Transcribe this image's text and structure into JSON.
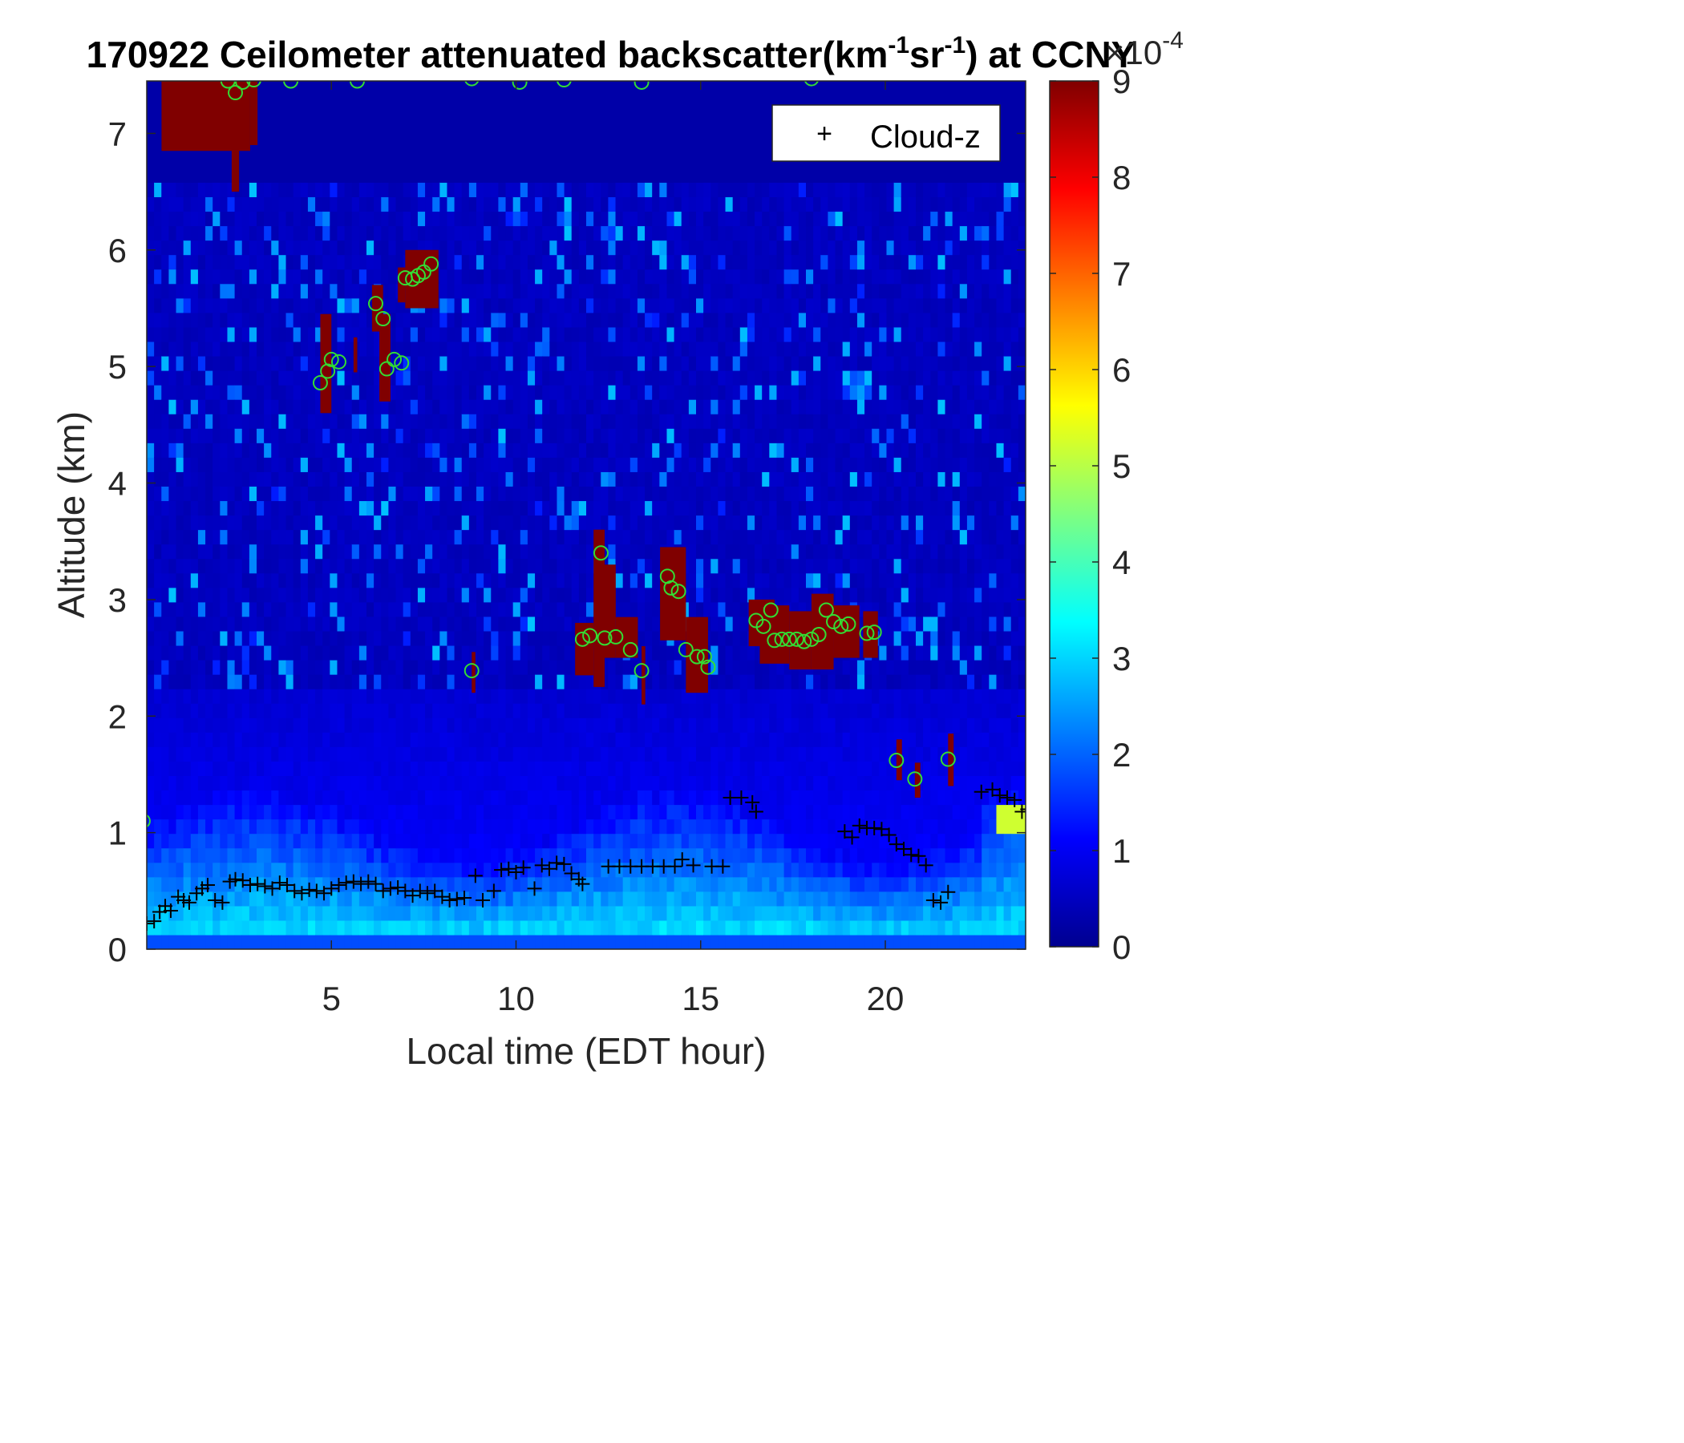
{
  "chart_data": {
    "type": "heatmap",
    "title_prefix": "170922 Ceilometer attenuated backscatter(km",
    "title_sup1": "-1",
    "title_mid": "sr",
    "title_sup2": "-1",
    "title_suffix": ") at CCNY",
    "xlabel": "Local time (EDT hour)",
    "ylabel": "Altitude (km)",
    "xlim": [
      0,
      23.8
    ],
    "ylim": [
      0,
      7.45
    ],
    "xticks": [
      "5",
      "10",
      "15",
      "20"
    ],
    "yticks": [
      "0",
      "1",
      "2",
      "3",
      "4",
      "5",
      "6",
      "7"
    ],
    "colorbar": {
      "min": 0,
      "max": 9,
      "ticks": [
        "0",
        "1",
        "2",
        "3",
        "4",
        "5",
        "6",
        "7",
        "8",
        "9"
      ],
      "exponent_base": "×10",
      "exponent": "-4",
      "colormap": "jet"
    },
    "legend": {
      "entries": [
        "Cloud-z"
      ],
      "placement": "top-right"
    },
    "background_level": 0.3,
    "surface_layer_level": 3.0,
    "colors": {
      "cloud_z_marker": "#000000",
      "cloud_circle": "#33dd33",
      "saturated_cloud": "#800000"
    },
    "cloud_z": [
      [
        0.0,
        0.22
      ],
      [
        0.2,
        0.24
      ],
      [
        0.35,
        0.32
      ],
      [
        0.5,
        0.37
      ],
      [
        0.65,
        0.33
      ],
      [
        0.85,
        0.45
      ],
      [
        1.0,
        0.42
      ],
      [
        1.15,
        0.4
      ],
      [
        1.35,
        0.48
      ],
      [
        1.5,
        0.52
      ],
      [
        1.65,
        0.55
      ],
      [
        1.85,
        0.42
      ],
      [
        2.05,
        0.4
      ],
      [
        2.25,
        0.58
      ],
      [
        2.4,
        0.6
      ],
      [
        2.6,
        0.59
      ],
      [
        2.8,
        0.55
      ],
      [
        3.0,
        0.56
      ],
      [
        3.2,
        0.54
      ],
      [
        3.4,
        0.52
      ],
      [
        3.6,
        0.57
      ],
      [
        3.8,
        0.55
      ],
      [
        4.0,
        0.5
      ],
      [
        4.2,
        0.48
      ],
      [
        4.4,
        0.51
      ],
      [
        4.6,
        0.5
      ],
      [
        4.8,
        0.48
      ],
      [
        5.0,
        0.52
      ],
      [
        5.2,
        0.55
      ],
      [
        5.4,
        0.57
      ],
      [
        5.6,
        0.58
      ],
      [
        5.8,
        0.56
      ],
      [
        6.0,
        0.58
      ],
      [
        6.2,
        0.56
      ],
      [
        6.4,
        0.5
      ],
      [
        6.6,
        0.52
      ],
      [
        6.8,
        0.53
      ],
      [
        7.0,
        0.5
      ],
      [
        7.2,
        0.46
      ],
      [
        7.4,
        0.5
      ],
      [
        7.6,
        0.48
      ],
      [
        7.8,
        0.5
      ],
      [
        8.0,
        0.45
      ],
      [
        8.2,
        0.42
      ],
      [
        8.4,
        0.43
      ],
      [
        8.6,
        0.44
      ],
      [
        8.9,
        0.63
      ],
      [
        9.1,
        0.42
      ],
      [
        9.4,
        0.5
      ],
      [
        9.6,
        0.68
      ],
      [
        9.8,
        0.69
      ],
      [
        10.0,
        0.66
      ],
      [
        10.2,
        0.7
      ],
      [
        10.5,
        0.52
      ],
      [
        10.7,
        0.72
      ],
      [
        10.9,
        0.69
      ],
      [
        11.1,
        0.74
      ],
      [
        11.3,
        0.73
      ],
      [
        11.5,
        0.65
      ],
      [
        11.7,
        0.6
      ],
      [
        11.8,
        0.56
      ],
      [
        12.5,
        0.71
      ],
      [
        12.8,
        0.71
      ],
      [
        13.1,
        0.71
      ],
      [
        13.4,
        0.71
      ],
      [
        13.7,
        0.71
      ],
      [
        14.0,
        0.71
      ],
      [
        14.3,
        0.71
      ],
      [
        14.5,
        0.77
      ],
      [
        14.8,
        0.72
      ],
      [
        15.3,
        0.71
      ],
      [
        15.6,
        0.71
      ],
      [
        15.8,
        1.3
      ],
      [
        16.1,
        1.3
      ],
      [
        16.4,
        1.26
      ],
      [
        16.5,
        1.18
      ],
      [
        18.9,
        1.01
      ],
      [
        19.1,
        0.96
      ],
      [
        19.3,
        1.06
      ],
      [
        19.5,
        1.04
      ],
      [
        19.7,
        1.04
      ],
      [
        19.9,
        1.03
      ],
      [
        20.1,
        0.98
      ],
      [
        20.3,
        0.9
      ],
      [
        20.5,
        0.86
      ],
      [
        20.7,
        0.81
      ],
      [
        20.9,
        0.8
      ],
      [
        21.1,
        0.72
      ],
      [
        21.3,
        0.42
      ],
      [
        21.5,
        0.4
      ],
      [
        21.7,
        0.49
      ],
      [
        22.6,
        1.35
      ],
      [
        22.9,
        1.37
      ],
      [
        23.1,
        1.32
      ],
      [
        23.3,
        1.3
      ],
      [
        23.5,
        1.28
      ],
      [
        23.7,
        1.18
      ],
      [
        23.85,
        1.2
      ]
    ],
    "cloud_circles": [
      [
        -0.1,
        1.1
      ],
      [
        2.2,
        7.45
      ],
      [
        2.4,
        7.35
      ],
      [
        2.6,
        7.44
      ],
      [
        2.9,
        7.46
      ],
      [
        3.9,
        7.45
      ],
      [
        5.7,
        7.45
      ],
      [
        8.8,
        7.47
      ],
      [
        10.1,
        7.44
      ],
      [
        11.3,
        7.46
      ],
      [
        13.4,
        7.44
      ],
      [
        18.0,
        7.47
      ],
      [
        4.7,
        4.86
      ],
      [
        4.9,
        4.96
      ],
      [
        5.0,
        5.06
      ],
      [
        5.2,
        5.04
      ],
      [
        6.2,
        5.54
      ],
      [
        6.4,
        5.41
      ],
      [
        6.5,
        4.98
      ],
      [
        6.7,
        5.06
      ],
      [
        6.9,
        5.03
      ],
      [
        7.0,
        5.76
      ],
      [
        7.2,
        5.75
      ],
      [
        7.35,
        5.78
      ],
      [
        7.5,
        5.81
      ],
      [
        7.7,
        5.88
      ],
      [
        8.8,
        2.39
      ],
      [
        11.8,
        2.66
      ],
      [
        12.0,
        2.69
      ],
      [
        12.3,
        3.4
      ],
      [
        12.4,
        2.67
      ],
      [
        12.7,
        2.68
      ],
      [
        13.1,
        2.57
      ],
      [
        13.4,
        2.39
      ],
      [
        14.1,
        3.2
      ],
      [
        14.2,
        3.1
      ],
      [
        14.4,
        3.07
      ],
      [
        14.6,
        2.57
      ],
      [
        14.9,
        2.51
      ],
      [
        15.1,
        2.51
      ],
      [
        15.2,
        2.42
      ],
      [
        16.5,
        2.82
      ],
      [
        16.7,
        2.77
      ],
      [
        16.9,
        2.91
      ],
      [
        17.0,
        2.65
      ],
      [
        17.2,
        2.66
      ],
      [
        17.4,
        2.66
      ],
      [
        17.6,
        2.66
      ],
      [
        17.8,
        2.64
      ],
      [
        18.0,
        2.66
      ],
      [
        18.2,
        2.7
      ],
      [
        18.4,
        2.91
      ],
      [
        18.6,
        2.81
      ],
      [
        18.8,
        2.77
      ],
      [
        19.0,
        2.79
      ],
      [
        19.5,
        2.71
      ],
      [
        19.7,
        2.72
      ],
      [
        20.3,
        1.62
      ],
      [
        20.8,
        1.46
      ],
      [
        21.7,
        1.63
      ]
    ],
    "saturated_regions": [
      [
        0.4,
        2.8,
        6.85,
        7.45
      ],
      [
        2.3,
        2.5,
        6.5,
        7.45
      ],
      [
        2.8,
        3.0,
        6.9,
        7.45
      ],
      [
        4.7,
        5.0,
        4.6,
        5.45
      ],
      [
        5.6,
        5.7,
        4.95,
        5.25
      ],
      [
        6.1,
        6.4,
        5.3,
        5.7
      ],
      [
        6.3,
        6.6,
        4.7,
        5.45
      ],
      [
        6.8,
        7.0,
        5.55,
        5.85
      ],
      [
        7.0,
        7.9,
        5.5,
        6.0
      ],
      [
        8.8,
        8.9,
        2.2,
        2.55
      ],
      [
        11.6,
        12.1,
        2.35,
        2.8
      ],
      [
        12.1,
        12.4,
        2.25,
        3.6
      ],
      [
        12.3,
        12.7,
        2.5,
        3.3
      ],
      [
        12.7,
        13.3,
        2.5,
        2.85
      ],
      [
        13.4,
        13.5,
        2.1,
        2.6
      ],
      [
        13.9,
        14.6,
        2.65,
        3.45
      ],
      [
        14.6,
        15.2,
        2.2,
        2.85
      ],
      [
        16.3,
        17.0,
        2.6,
        3.0
      ],
      [
        16.6,
        17.4,
        2.45,
        2.95
      ],
      [
        17.4,
        18.0,
        2.4,
        2.9
      ],
      [
        18.0,
        18.6,
        2.4,
        3.05
      ],
      [
        18.6,
        19.3,
        2.5,
        2.95
      ],
      [
        19.4,
        19.8,
        2.5,
        2.9
      ],
      [
        20.3,
        20.45,
        1.45,
        1.8
      ],
      [
        20.8,
        20.95,
        1.3,
        1.6
      ],
      [
        21.7,
        21.85,
        1.4,
        1.85
      ]
    ]
  }
}
